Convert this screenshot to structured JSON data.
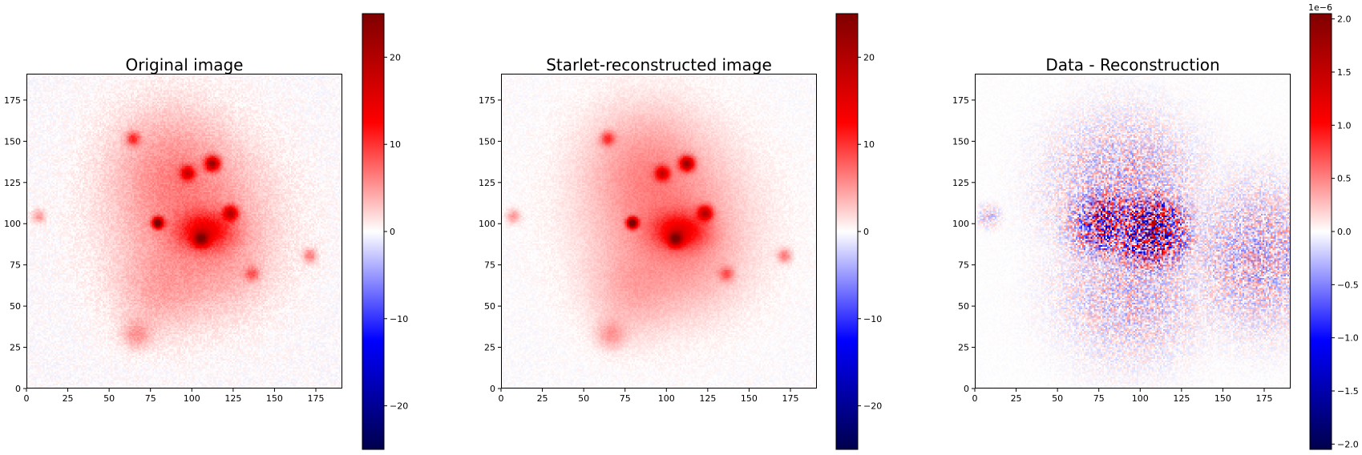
{
  "chart_data": [
    {
      "type": "heatmap",
      "title": "Original image",
      "x_ticks": [
        "0",
        "25",
        "50",
        "75",
        "100",
        "125",
        "150",
        "175"
      ],
      "y_ticks": [
        "0",
        "25",
        "50",
        "75",
        "100",
        "125",
        "150",
        "175"
      ],
      "xlim": [
        0,
        191
      ],
      "ylim": [
        0,
        191
      ],
      "colormap": "seismic",
      "colorbar": {
        "range": [
          -25,
          25
        ],
        "ticks": [
          "20",
          "10",
          "0",
          "−10",
          "−20"
        ],
        "tick_values": [
          20,
          10,
          0,
          -10,
          -20
        ],
        "offset_label": ""
      },
      "sources": [
        {
          "x": 105,
          "y": 90,
          "peak": 14
        },
        {
          "x": 123,
          "y": 106,
          "peak": 14
        },
        {
          "x": 79,
          "y": 100,
          "peak": 25
        },
        {
          "x": 112,
          "y": 136,
          "peak": 18
        },
        {
          "x": 97,
          "y": 130,
          "peak": 12
        },
        {
          "x": 64,
          "y": 151,
          "peak": 8
        },
        {
          "x": 171,
          "y": 80,
          "peak": 6
        },
        {
          "x": 136,
          "y": 69,
          "peak": 6
        },
        {
          "x": 7,
          "y": 104,
          "peak": 5
        }
      ]
    },
    {
      "type": "heatmap",
      "title": "Starlet-reconstructed image",
      "x_ticks": [
        "0",
        "25",
        "50",
        "75",
        "100",
        "125",
        "150",
        "175"
      ],
      "y_ticks": [
        "0",
        "25",
        "50",
        "75",
        "100",
        "125",
        "150",
        "175"
      ],
      "xlim": [
        0,
        191
      ],
      "ylim": [
        0,
        191
      ],
      "colormap": "seismic",
      "colorbar": {
        "range": [
          -25,
          25
        ],
        "ticks": [
          "20",
          "10",
          "0",
          "−10",
          "−20"
        ],
        "tick_values": [
          20,
          10,
          0,
          -10,
          -20
        ],
        "offset_label": ""
      },
      "sources": [
        {
          "x": 105,
          "y": 90,
          "peak": 14
        },
        {
          "x": 123,
          "y": 106,
          "peak": 14
        },
        {
          "x": 79,
          "y": 100,
          "peak": 25
        },
        {
          "x": 112,
          "y": 136,
          "peak": 18
        },
        {
          "x": 97,
          "y": 130,
          "peak": 12
        },
        {
          "x": 64,
          "y": 151,
          "peak": 8
        },
        {
          "x": 171,
          "y": 80,
          "peak": 6
        },
        {
          "x": 136,
          "y": 69,
          "peak": 6
        },
        {
          "x": 7,
          "y": 104,
          "peak": 5
        }
      ]
    },
    {
      "type": "heatmap",
      "title": "Data - Reconstruction",
      "x_ticks": [
        "0",
        "25",
        "50",
        "75",
        "100",
        "125",
        "150",
        "175"
      ],
      "y_ticks": [
        "0",
        "25",
        "50",
        "75",
        "100",
        "125",
        "150",
        "175"
      ],
      "xlim": [
        0,
        191
      ],
      "ylim": [
        0,
        191
      ],
      "colormap": "seismic",
      "colorbar": {
        "range": [
          -2.05,
          2.05
        ],
        "ticks": [
          "2.0",
          "1.5",
          "1.0",
          "0.5",
          "0.0",
          "−0.5",
          "−1.0",
          "−1.5",
          "−2.0"
        ],
        "tick_values": [
          2.0,
          1.5,
          1.0,
          0.5,
          0.0,
          -0.5,
          -1.0,
          -1.5,
          -2.0
        ],
        "offset_label": "1e−6"
      },
      "residual_regions": [
        {
          "x": 105,
          "y": 95,
          "amplitude": 2.0
        },
        {
          "x": 80,
          "y": 100,
          "amplitude": 1.5
        },
        {
          "x": 90,
          "y": 120,
          "amplitude": 0.6
        },
        {
          "x": 95,
          "y": 60,
          "amplitude": 0.5
        },
        {
          "x": 60,
          "y": 130,
          "amplitude": 0.35
        },
        {
          "x": 172,
          "y": 80,
          "amplitude": 0.6
        },
        {
          "x": 8,
          "y": 104,
          "amplitude": 0.4
        }
      ]
    }
  ]
}
